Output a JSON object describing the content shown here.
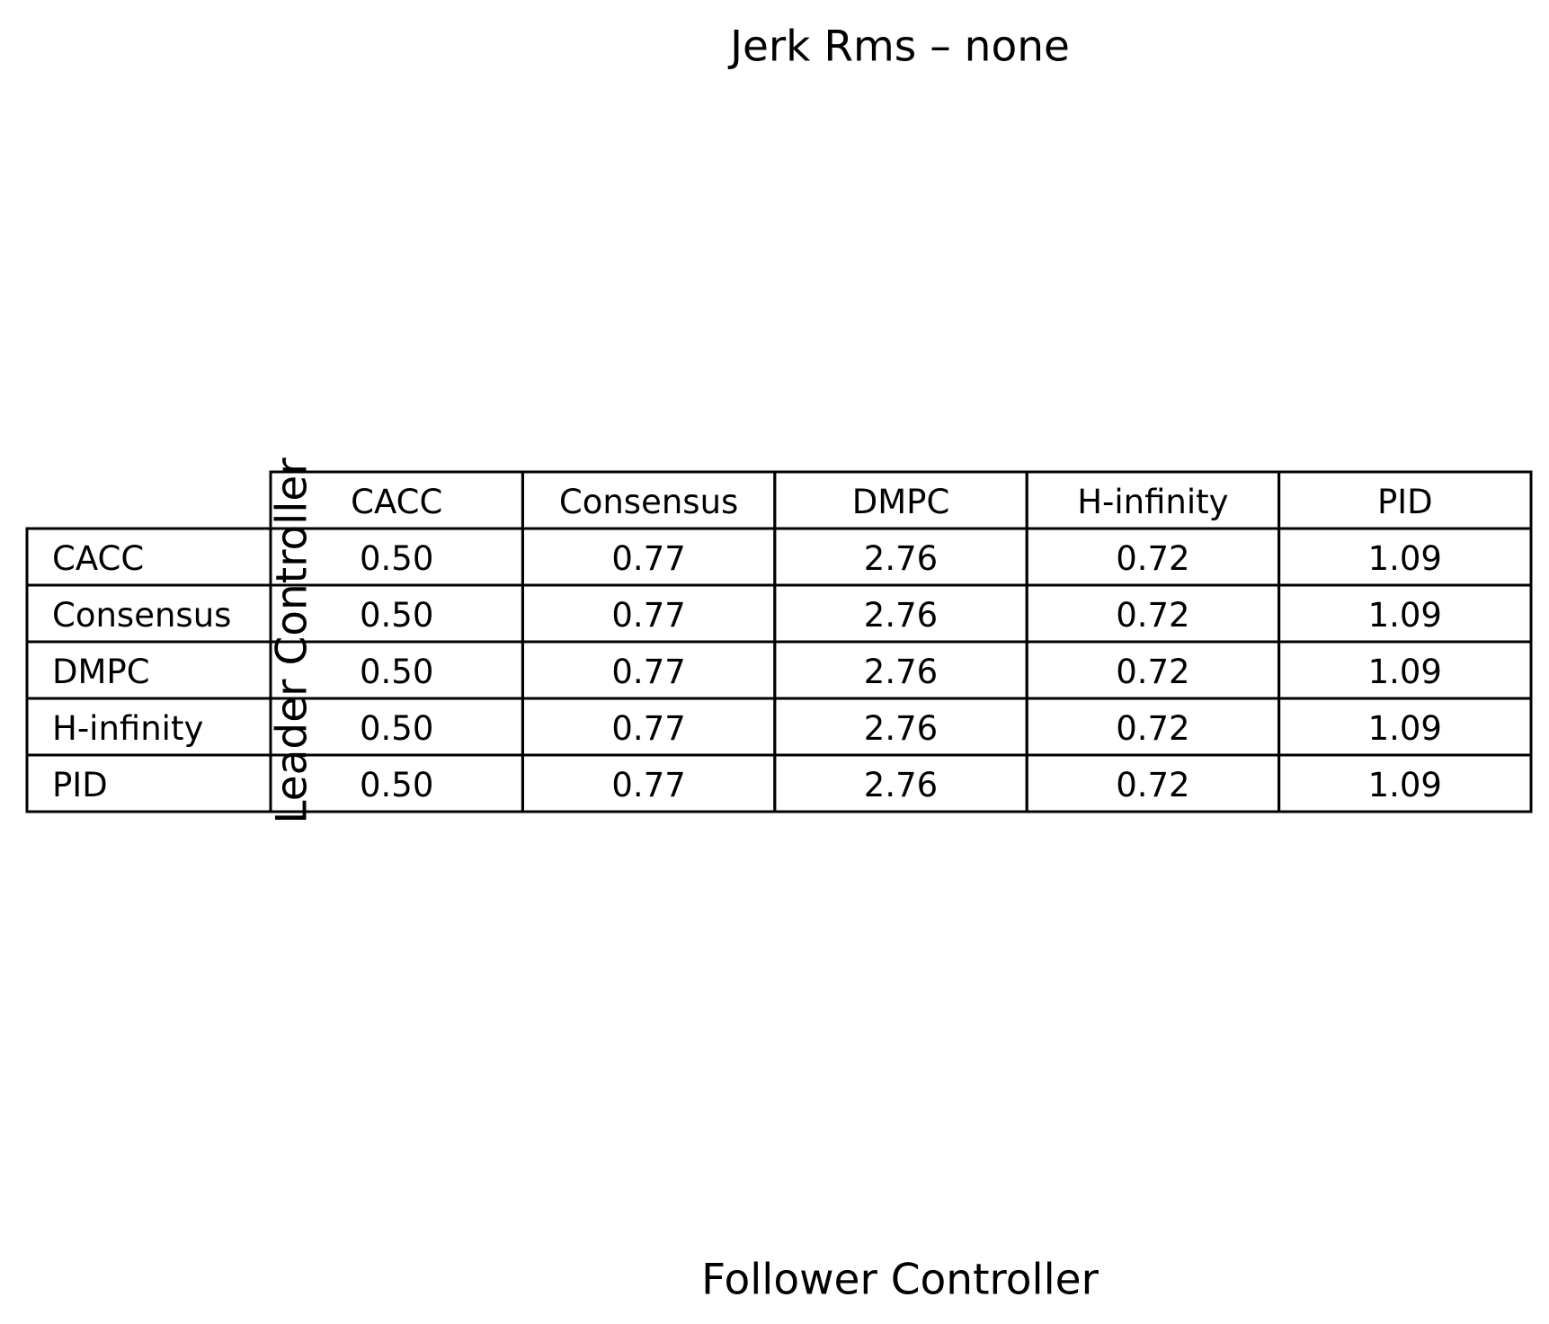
{
  "chart_data": {
    "type": "table",
    "title": "Jerk Rms – none",
    "xlabel": "Follower Controller",
    "ylabel": "Leader Controller",
    "col_labels": [
      "CACC",
      "Consensus",
      "DMPC",
      "H-infinity",
      "PID"
    ],
    "row_labels": [
      "CACC",
      "Consensus",
      "DMPC",
      "H-infinity",
      "PID"
    ],
    "cells": [
      [
        "0.50",
        "0.77",
        "2.76",
        "0.72",
        "1.09"
      ],
      [
        "0.50",
        "0.77",
        "2.76",
        "0.72",
        "1.09"
      ],
      [
        "0.50",
        "0.77",
        "2.76",
        "0.72",
        "1.09"
      ],
      [
        "0.50",
        "0.77",
        "2.76",
        "0.72",
        "1.09"
      ],
      [
        "0.50",
        "0.77",
        "2.76",
        "0.72",
        "1.09"
      ]
    ],
    "colors": {
      "text": "#000000",
      "grid": "#000000",
      "background": "#ffffff"
    }
  }
}
